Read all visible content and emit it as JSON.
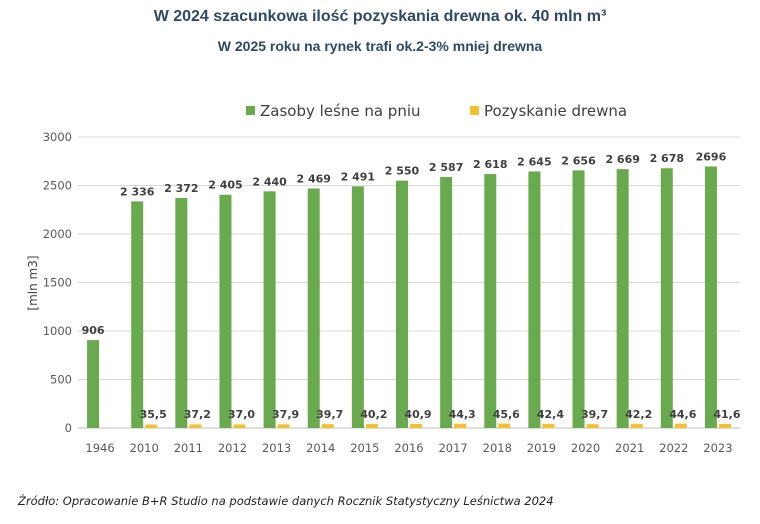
{
  "title": "W 2024 szacunkowa ilość pozyskania drewna ok. 40 mln m³",
  "subtitle": "W 2025 roku na rynek trafi ok.2-3% mniej drewna",
  "source": "Źródło: Opracowanie B+R Studio na podstawie danych Rocznik Statystyczny Leśnictwa 2024",
  "colors": {
    "stock": "#6aaa4f",
    "harvest": "#f2c12e",
    "grid": "#d9d9d9",
    "tick": "#595959",
    "label": "#404040"
  },
  "chart_data": {
    "type": "bar",
    "ylabel": "[mln m3]",
    "ylim": [
      0,
      3000
    ],
    "yticks": [
      "0",
      "500",
      "1000",
      "1500",
      "2000",
      "2500",
      "3000"
    ],
    "grid": true,
    "legend_position": "top",
    "categories": [
      "1946",
      "2010",
      "2011",
      "2012",
      "2013",
      "2014",
      "2015",
      "2016",
      "2017",
      "2018",
      "2019",
      "2020",
      "2021",
      "2022",
      "2023"
    ],
    "series": [
      {
        "name": "Zasoby leśne na pniu",
        "values": [
          906,
          2336,
          2372,
          2405,
          2440,
          2469,
          2491,
          2550,
          2587,
          2618,
          2645,
          2656,
          2669,
          2678,
          2696
        ],
        "labels": [
          "906",
          "2 336",
          "2 372",
          "2 405",
          "2 440",
          "2 469",
          "2 491",
          "2 550",
          "2 587",
          "2 618",
          "2 645",
          "2 656",
          "2 669",
          "2 678",
          "2696"
        ]
      },
      {
        "name": "Pozyskanie drewna",
        "values": [
          null,
          35.5,
          37.2,
          37.0,
          37.9,
          39.7,
          40.2,
          40.9,
          44.3,
          45.6,
          42.4,
          39.7,
          42.2,
          44.6,
          41.6
        ],
        "labels": [
          "",
          "35,5",
          "37,2",
          "37,0",
          "37,9",
          "39,7",
          "40,2",
          "40,9",
          "44,3",
          "45,6",
          "42,4",
          "39,7",
          "42,2",
          "44,6",
          "41,6"
        ]
      }
    ]
  }
}
